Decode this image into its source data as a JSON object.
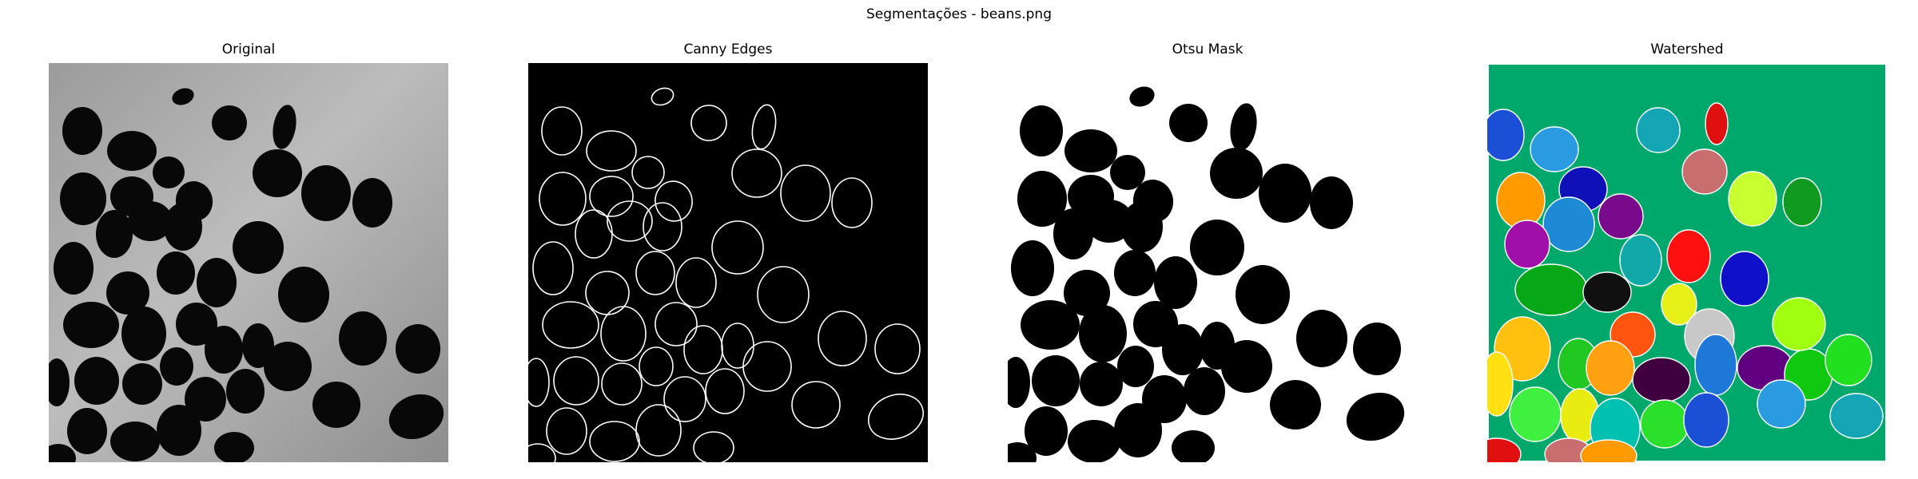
{
  "figure": {
    "title": "Segmentações - beans.png"
  },
  "panels": [
    {
      "title": "Original",
      "kind": "grayscale"
    },
    {
      "title": "Canny Edges",
      "kind": "edges"
    },
    {
      "title": "Otsu Mask",
      "kind": "mask"
    },
    {
      "title": "Watershed",
      "kind": "labels"
    }
  ],
  "colors": {
    "original_background": "#b4b4b4",
    "original_beans": "#080808",
    "canvas_black": "#000000",
    "edge_white": "#ffffff",
    "mask_background": "#ffffff",
    "mask_beans": "#000000",
    "watershed_background": "#00a86b",
    "watershed_outline": "#ffffff",
    "watershed_palette": [
      "#1a4fd6",
      "#2a9be0",
      "#14a6b4",
      "#e01010",
      "#c86e6e",
      "#ff9a00",
      "#1010b8",
      "#7a0a8c",
      "#1e8ad6",
      "#c8ff30",
      "#109a20",
      "#a010a8",
      "#10a8a8",
      "#ff1010",
      "#1010c8",
      "#06a818",
      "#101010",
      "#e6f018",
      "#ff5510",
      "#ffc010",
      "#22c822",
      "#c8c8c8",
      "#ffa010",
      "#400040",
      "#1e78d8",
      "#600080",
      "#10c810",
      "#a0ff10",
      "#20e020",
      "#ffe010",
      "#40f040",
      "#e8ec10",
      "#00c0b0",
      "#2ae02a"
    ]
  }
}
